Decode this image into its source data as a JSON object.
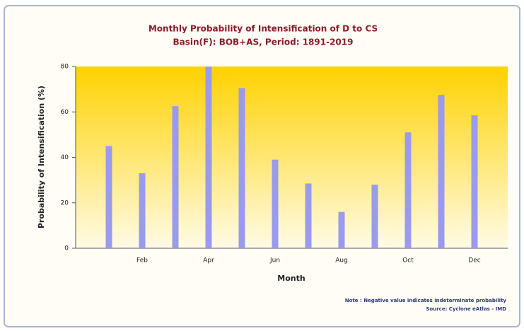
{
  "chart_data": {
    "type": "bar",
    "title": "Monthly Probability of Intensification of D to CS",
    "subtitle": "Basin(F): BOB+AS, Period: 1891-2019",
    "x_label": "Month",
    "y_label": "Probability of Intensification (%)",
    "categories": [
      null,
      "Feb",
      null,
      "Apr",
      null,
      "Jun",
      null,
      "Aug",
      null,
      "Oct",
      null,
      "Dec"
    ],
    "values": [
      45,
      33,
      62.5,
      80,
      70.5,
      39,
      28.5,
      16,
      28,
      51,
      67.5,
      58.5
    ],
    "color": "#9a9aee",
    "ylim": [
      0,
      80
    ],
    "yticks": [
      0,
      20,
      40,
      60,
      80
    ],
    "notes": [
      "Note : Negative value indicates indeterminate probability",
      "Source: Cyclone eAtlas - IMD"
    ]
  }
}
